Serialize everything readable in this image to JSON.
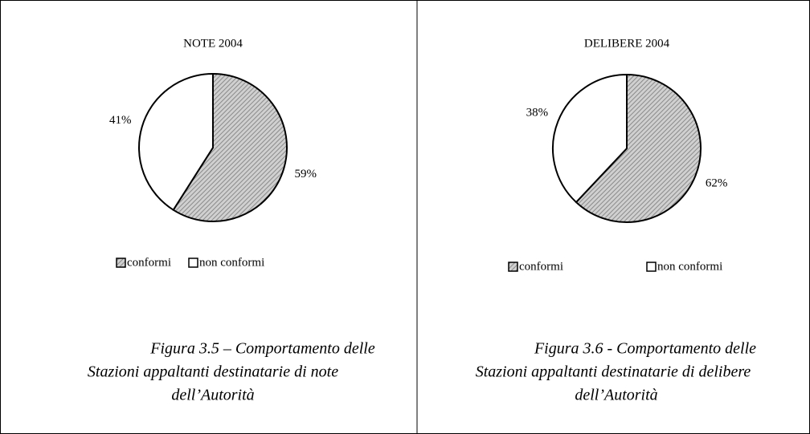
{
  "chart_data": [
    {
      "type": "pie",
      "title": "NOTE 2004",
      "categories": [
        "conformi",
        "non conformi"
      ],
      "values": [
        59,
        41
      ],
      "value_labels": [
        "59%",
        "41%"
      ],
      "colors": [
        "#8a8a8a",
        "#ffffff"
      ],
      "caption": [
        "Figura 3.5 – Comportamento delle",
        "Stazioni appaltanti destinatarie di note",
        "dell’Autorità"
      ]
    },
    {
      "type": "pie",
      "title": "DELIBERE 2004",
      "categories": [
        "conformi",
        "non conformi"
      ],
      "values": [
        62,
        38
      ],
      "value_labels": [
        "62%",
        "38%"
      ],
      "colors": [
        "#8a8a8a",
        "#ffffff"
      ],
      "caption": [
        "Figura 3.6 - Comportamento delle",
        "Stazioni appaltanti destinatarie di delibere",
        "dell’Autorità"
      ]
    }
  ]
}
